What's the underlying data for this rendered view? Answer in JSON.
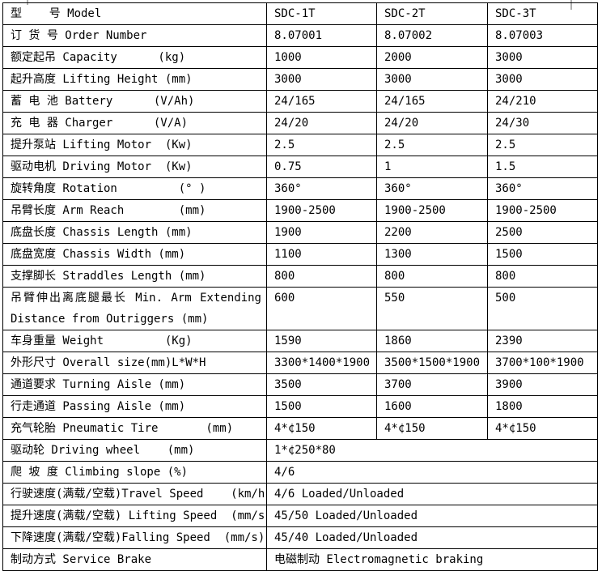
{
  "colors": {
    "background": "#ffffff",
    "table_border": "#000000",
    "text": "#000000",
    "margin_marker": "#b0b0b0"
  },
  "table": {
    "model_columns": [
      "SDC-1T",
      "SDC-2T",
      "SDC-3T"
    ],
    "rows": [
      {
        "label": "型    号 Model",
        "values": [
          "SDC-1T",
          "SDC-2T",
          "SDC-3T"
        ]
      },
      {
        "label": "订 货 号 Order Number",
        "values": [
          "8.07001",
          "8.07002",
          "8.07003"
        ]
      },
      {
        "label": "额定起吊 Capacity      (kg)",
        "values": [
          "1000",
          "2000",
          "3000"
        ]
      },
      {
        "label": "起升高度 Lifting Height (mm)",
        "values": [
          "3000",
          "3000",
          "3000"
        ]
      },
      {
        "label": "蓄 电 池 Battery      (V/Ah)",
        "values": [
          "24/165",
          "24/165",
          "24/210"
        ]
      },
      {
        "label": "充 电 器 Charger      (V/A)",
        "values": [
          "24/20",
          "24/20",
          "24/30"
        ]
      },
      {
        "label": "提升泵站 Lifting Motor  (Kw)",
        "values": [
          "2.5",
          "2.5",
          "2.5"
        ]
      },
      {
        "label": "驱动电机 Driving Motor  (Kw)",
        "values": [
          "0.75",
          "1",
          "1.5"
        ]
      },
      {
        "label": "旋转角度 Rotation         (° )",
        "values": [
          "360°",
          "360°",
          "360°"
        ]
      },
      {
        "label": "吊臂长度 Arm Reach        (mm)",
        "values": [
          "1900-2500",
          "1900-2500",
          "1900-2500"
        ]
      },
      {
        "label": "底盘长度 Chassis Length (mm)",
        "values": [
          "1900",
          "2200",
          "2500"
        ]
      },
      {
        "label": "底盘宽度 Chassis Width (mm)",
        "values": [
          "1100",
          "1300",
          "1500"
        ]
      },
      {
        "label": "支撑脚长 Straddles Length (mm)",
        "values": [
          "800",
          "800",
          "800"
        ]
      },
      {
        "label": "吊臂伸出离底腿最长 Min. Arm Extending",
        "label_line2": "Distance from Outriggers (mm)",
        "tall": true,
        "values": [
          "600",
          "550",
          "500"
        ]
      },
      {
        "label": "车身重量 Weight         (Kg)",
        "values": [
          "1590",
          "1860",
          "2390"
        ]
      },
      {
        "label": "外形尺寸 Overall size(mm)L*W*H",
        "values": [
          "3300*1400*1900",
          "3500*1500*1900",
          "3700*100*1900"
        ]
      },
      {
        "label": "通道要求 Turning Aisle (mm)",
        "values": [
          "3500",
          "3700",
          "3900"
        ]
      },
      {
        "label": "行走通道 Passing Aisle (mm)",
        "values": [
          "1500",
          "1600",
          "1800"
        ]
      },
      {
        "label": "充气轮胎 Pneumatic Tire       (mm)",
        "values": [
          "4*¢150",
          "4*¢150",
          "4*¢150"
        ]
      },
      {
        "label": "驱动轮 Driving wheel    (mm)",
        "span_value": "1*¢250*80"
      },
      {
        "label": "爬 坡 度 Climbing slope (%)",
        "span_value": "4/6"
      },
      {
        "label": "行驶速度(满载/空载)Travel Speed    (km/h)",
        "span_value": "4/6 Loaded/Unloaded"
      },
      {
        "label": "提升速度(满载/空载) Lifting Speed  (mm/s)",
        "span_value": "45/50 Loaded/Unloaded"
      },
      {
        "label": "下降速度(满载/空载)Falling Speed  (mm/s)",
        "span_value": "45/40 Loaded/Unloaded"
      },
      {
        "label": "制动方式 Service Brake",
        "span_value": "电磁制动 Electromagnetic braking"
      }
    ]
  }
}
